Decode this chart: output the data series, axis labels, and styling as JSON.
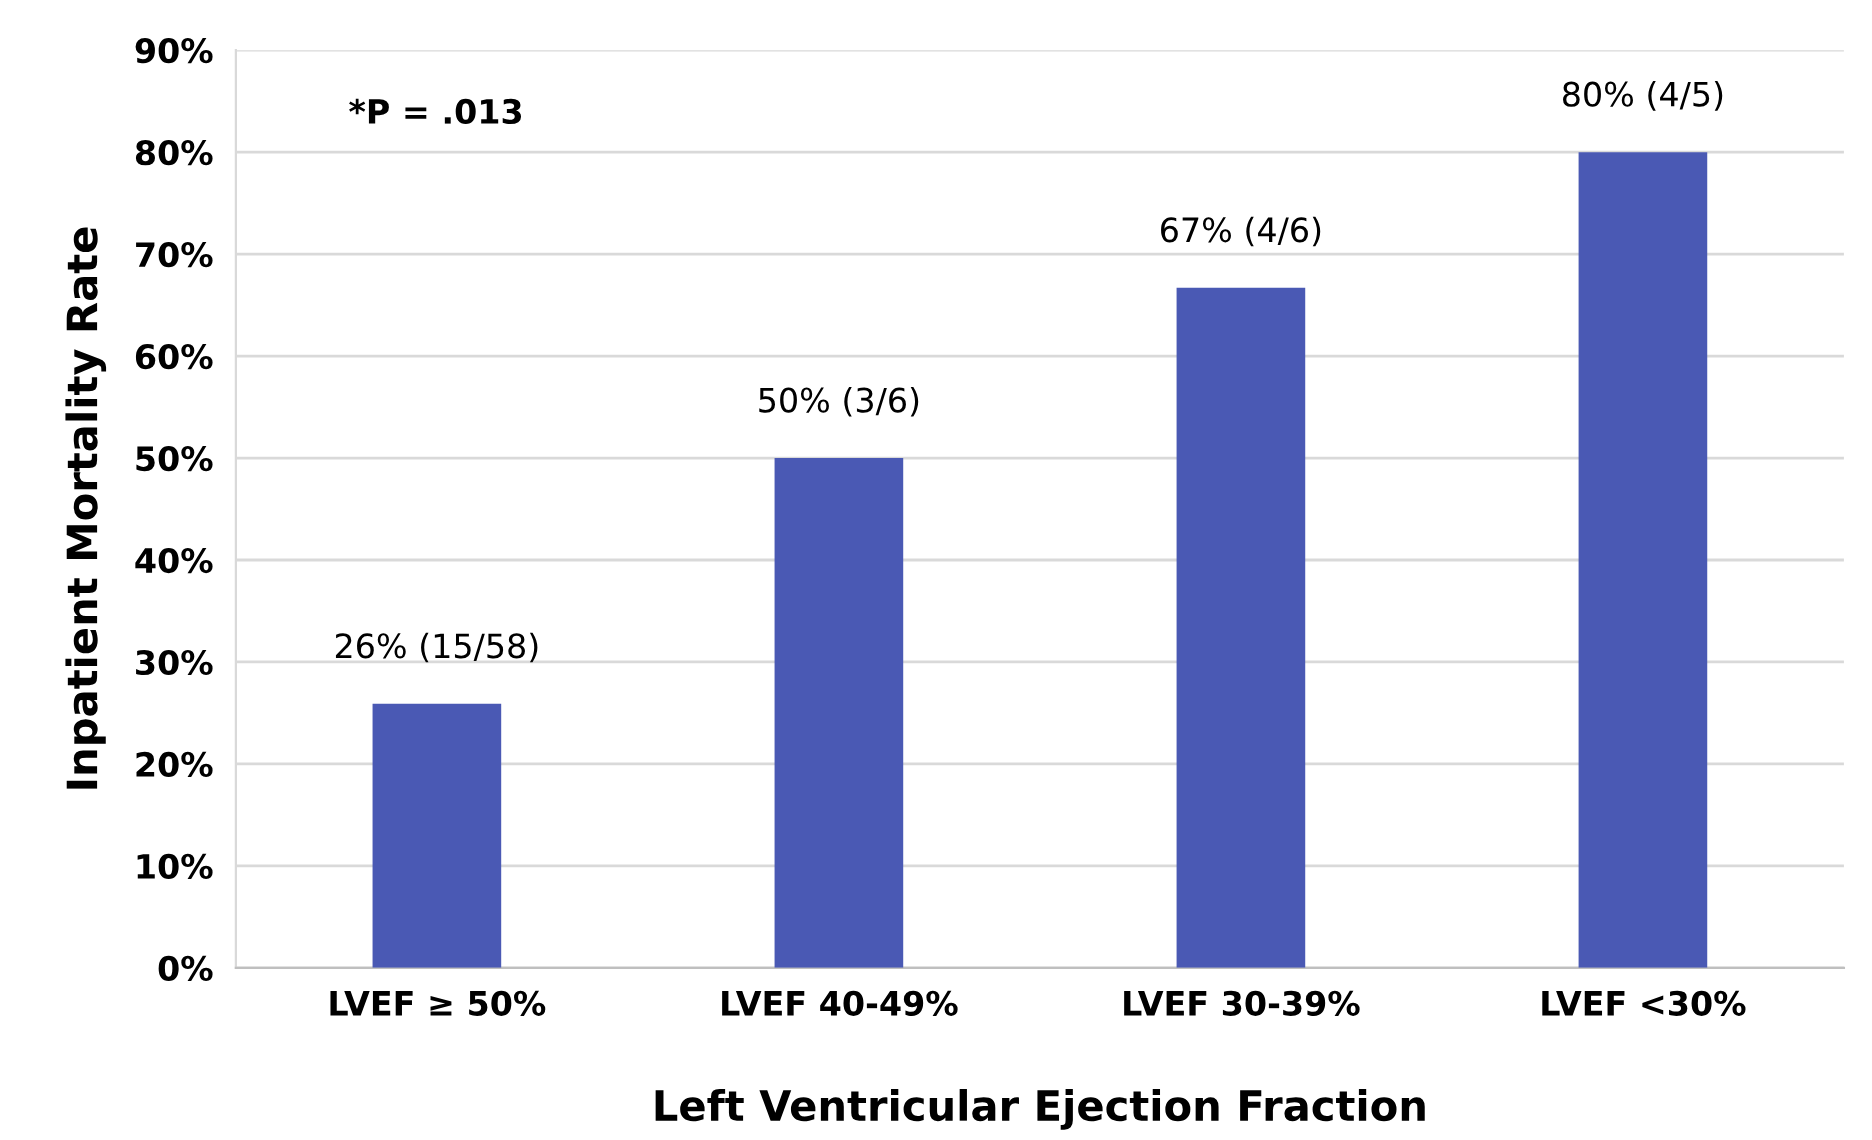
{
  "chart_data": {
    "type": "bar",
    "xlabel": "Left Ventricular Ejection Fraction",
    "ylabel": "Inpatient Mortality Rate",
    "categories": [
      "LVEF ≥ 50%",
      "LVEF 40-49%",
      "LVEF 30-39%",
      "LVEF <30%"
    ],
    "values": [
      25.9,
      50,
      66.7,
      80
    ],
    "value_labels": [
      "26% (15/58)",
      "50% (3/6)",
      "67% (4/6)",
      "80% (4/5)"
    ],
    "color": "#4a59b4",
    "ylim": [
      0,
      90
    ],
    "yticks": [
      {
        "value": 0,
        "label": "0%"
      },
      {
        "value": 10,
        "label": "10%"
      },
      {
        "value": 20,
        "label": "20%"
      },
      {
        "value": 30,
        "label": "30%"
      },
      {
        "value": 40,
        "label": "40%"
      },
      {
        "value": 50,
        "label": "50%"
      },
      {
        "value": 60,
        "label": "60%"
      },
      {
        "value": 70,
        "label": "70%"
      },
      {
        "value": 80,
        "label": "80%"
      },
      {
        "value": 90,
        "label": "90%"
      }
    ],
    "grid": "y",
    "annotations": [
      "*P = .013"
    ]
  }
}
